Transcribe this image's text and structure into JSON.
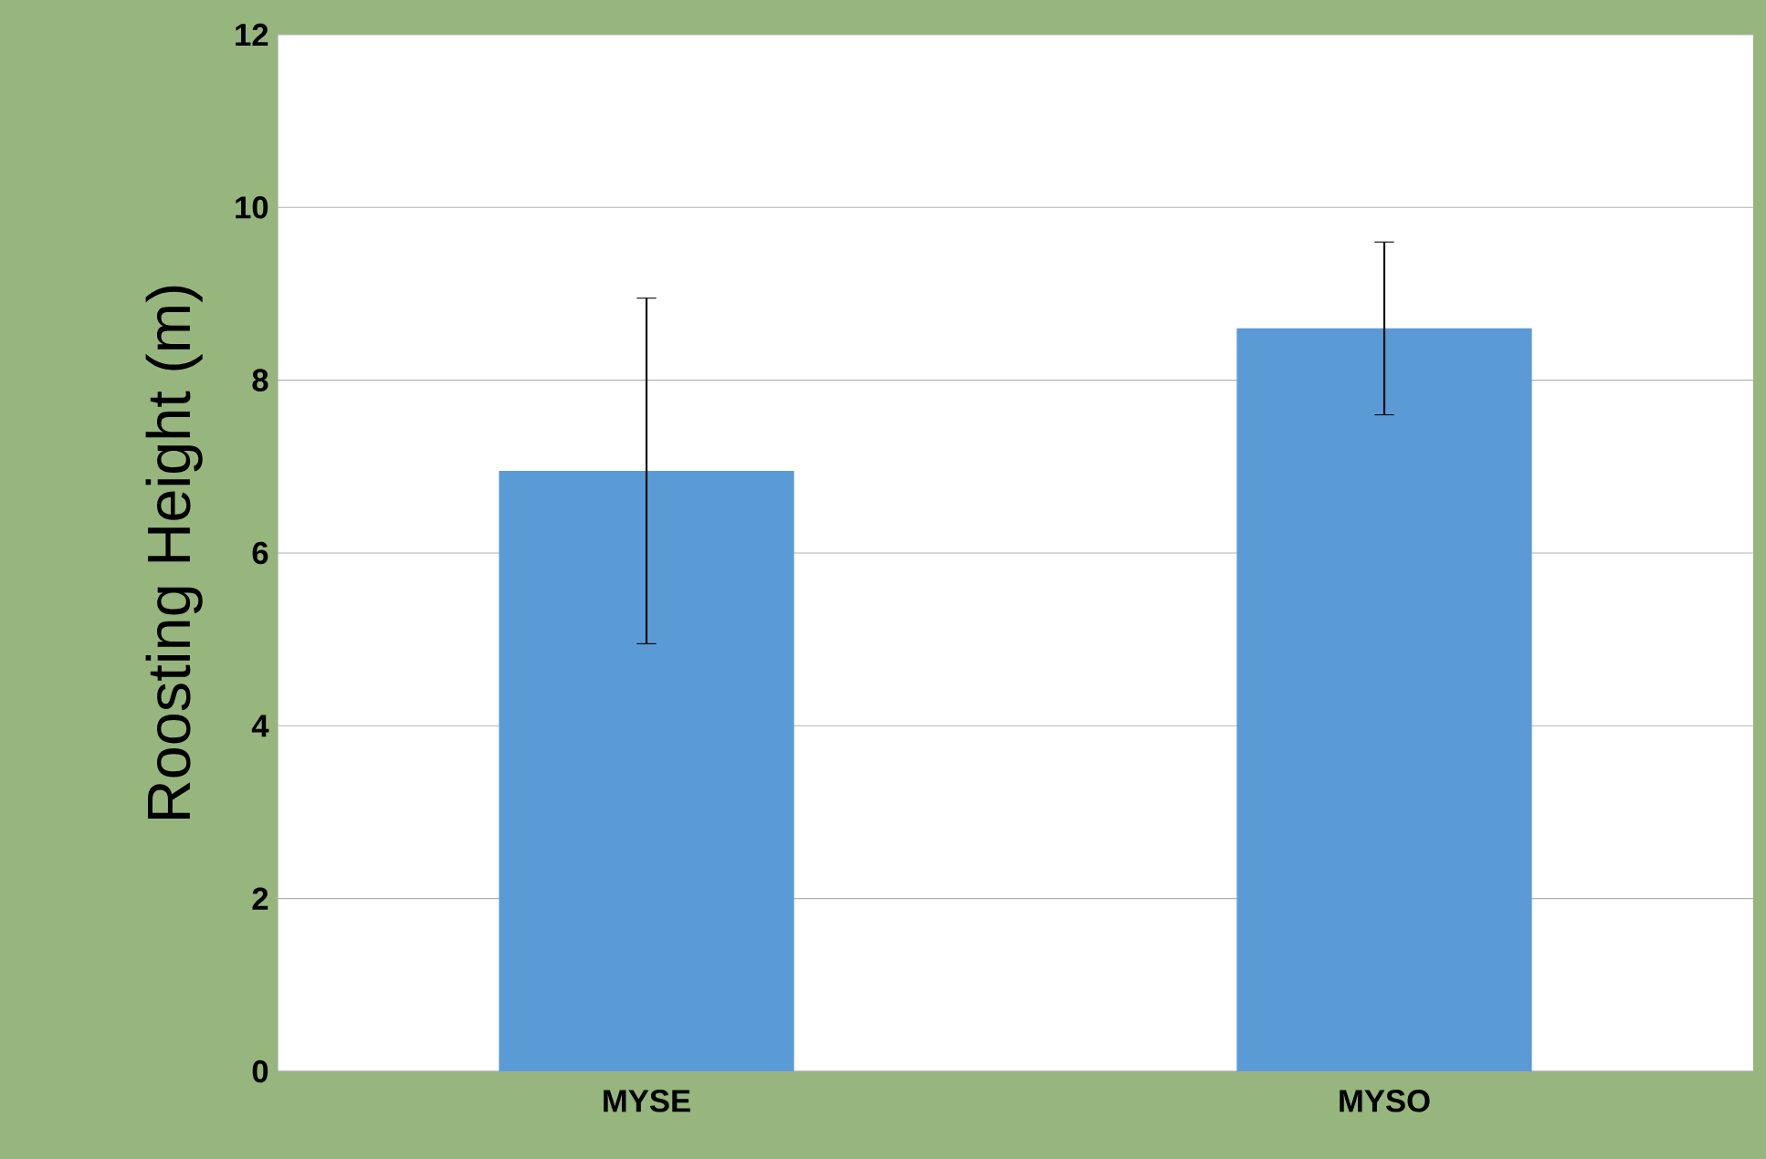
{
  "chart_data": {
    "type": "bar",
    "ylabel": "Roosting Height (m)",
    "categories": [
      "MYSE",
      "MYSO"
    ],
    "values": [
      6.95,
      8.6
    ],
    "errors": [
      2,
      1
    ],
    "color": "#5b9bd5",
    "ylim": [
      0,
      12
    ],
    "yticks": [
      0,
      2,
      4,
      6,
      8,
      10,
      12
    ],
    "grid": "y"
  }
}
